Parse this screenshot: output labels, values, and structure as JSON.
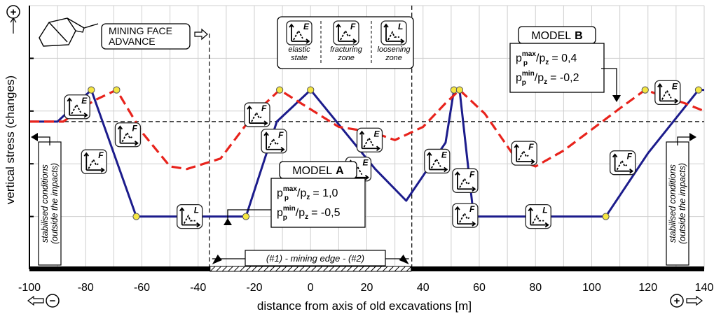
{
  "chart_data": {
    "type": "line",
    "xlabel": "distance from axis of old excavations [m]",
    "ylabel": "vertical stress (changes)",
    "x_ticks": [
      "-100",
      "-80",
      "-60",
      "-40",
      "-20",
      "0",
      "20",
      "40",
      "60",
      "80",
      "100",
      "120",
      "140"
    ],
    "xlim": [
      -100,
      140
    ],
    "ylim": [
      0,
      5
    ],
    "grid": true,
    "baseline_level": 2.8,
    "series": [
      {
        "name": "MODEL A",
        "color": "#1c1c8c",
        "style": "solid",
        "points": [
          [
            -100,
            2.8
          ],
          [
            -90,
            2.8
          ],
          [
            -78,
            3.4
          ],
          [
            -62,
            1.0
          ],
          [
            -23,
            1.0
          ],
          [
            -12,
            2.8
          ],
          [
            0,
            3.4
          ],
          [
            23,
            1.9
          ],
          [
            34,
            1.3
          ],
          [
            48,
            2.4
          ],
          [
            51,
            3.4
          ],
          [
            53,
            3.4
          ],
          [
            58,
            1.0
          ],
          [
            105,
            1.0
          ],
          [
            120,
            2.2
          ],
          [
            138,
            3.4
          ],
          [
            140,
            3.4
          ]
        ]
      },
      {
        "name": "MODEL B",
        "color": "#e8231c",
        "style": "dashed",
        "points": [
          [
            -100,
            2.8
          ],
          [
            -88,
            2.8
          ],
          [
            -77,
            3.2
          ],
          [
            -69,
            3.4
          ],
          [
            -60,
            2.6
          ],
          [
            -50,
            1.95
          ],
          [
            -44,
            1.9
          ],
          [
            -32,
            2.1
          ],
          [
            -20,
            2.95
          ],
          [
            -11,
            3.4
          ],
          [
            10,
            2.7
          ],
          [
            22,
            2.6
          ],
          [
            30,
            2.45
          ],
          [
            40,
            2.7
          ],
          [
            48,
            3.15
          ],
          [
            51,
            3.3
          ],
          [
            53,
            3.4
          ],
          [
            62,
            2.95
          ],
          [
            73,
            2.1
          ],
          [
            80,
            1.95
          ],
          [
            90,
            2.25
          ],
          [
            110,
            3.05
          ],
          [
            119,
            3.4
          ],
          [
            133,
            3.15
          ],
          [
            140,
            3.0
          ]
        ]
      }
    ],
    "yellow_markers": [
      [
        -78,
        3.4
      ],
      [
        -69,
        3.4
      ],
      [
        -62,
        1.0
      ],
      [
        -23,
        1.0
      ],
      [
        -11,
        3.4
      ],
      [
        0,
        3.4
      ],
      [
        51,
        3.4
      ],
      [
        53,
        3.4
      ],
      [
        58,
        1.0
      ],
      [
        105,
        1.0
      ],
      [
        119,
        3.4
      ],
      [
        138,
        3.4
      ]
    ],
    "state_icons": [
      {
        "state": "E",
        "x": -83,
        "y": 3.08
      },
      {
        "state": "F",
        "x": -77,
        "y": 2.04
      },
      {
        "state": "F",
        "x": -65,
        "y": 2.55
      },
      {
        "state": "L",
        "x": -43,
        "y": 1.0
      },
      {
        "state": "F",
        "x": -19,
        "y": 2.93
      },
      {
        "state": "F",
        "x": -13,
        "y": 2.43
      },
      {
        "state": "E",
        "x": 21,
        "y": 2.45
      },
      {
        "state": "E",
        "x": 17,
        "y": 1.9
      },
      {
        "state": "E",
        "x": 45,
        "y": 2.05
      },
      {
        "state": "F",
        "x": 55,
        "y": 1.68
      },
      {
        "state": "F",
        "x": 55,
        "y": 1.02
      },
      {
        "state": "F",
        "x": 76,
        "y": 2.2
      },
      {
        "state": "L",
        "x": 81,
        "y": 1.0
      },
      {
        "state": "F",
        "x": 111,
        "y": 2.02
      },
      {
        "state": "E",
        "x": 127,
        "y": 3.35
      }
    ],
    "annotations": {
      "mining_face": "MINING FACE\nADVANCE",
      "legend_states": [
        {
          "letter": "E",
          "label": "elastic\nstate"
        },
        {
          "letter": "F",
          "label": "fracturing\nzone"
        },
        {
          "letter": "L",
          "label": "loosening\nzone"
        }
      ],
      "model_a": {
        "title": "MODEL",
        "letter": "A",
        "pmax": "= 1,0",
        "pmin": "= -0,5"
      },
      "model_b": {
        "title": "MODEL",
        "letter": "B",
        "pmax": "= 0,4",
        "pmin": "= -0,2"
      },
      "stab_left": "stabilised conditions\n(outside the impacts)",
      "stab_right": "stabilised conditions\n(outside the impacts)",
      "mining_edge": "(#1) - mining edge - (#2)",
      "p_symbol": "p",
      "p_sub": "p",
      "p_sup_max": "max",
      "p_sup_min": "min",
      "pz_slash": "/p",
      "pz_sub": "z",
      "minus_sign": "−",
      "plus_sign": "+"
    }
  }
}
